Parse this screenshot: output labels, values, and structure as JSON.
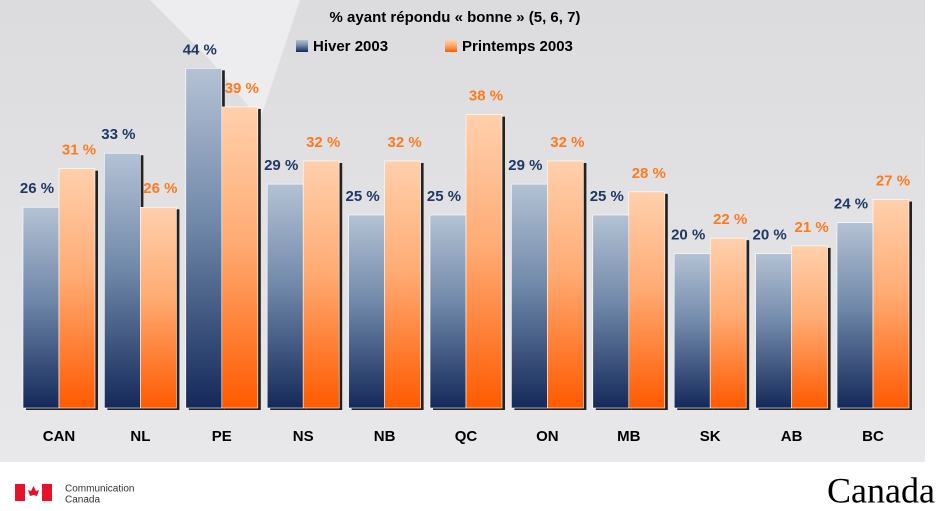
{
  "chart_data": {
    "type": "bar",
    "title": "% ayant répondu « bonne » (5, 6, 7)",
    "categories": [
      "CAN",
      "NL",
      "PE",
      "NS",
      "NB",
      "QC",
      "ON",
      "MB",
      "SK",
      "AB",
      "BC"
    ],
    "series": [
      {
        "name": "Hiver 2003",
        "color": "#1f3864",
        "values": [
          26,
          33,
          44,
          29,
          25,
          25,
          29,
          25,
          20,
          20,
          24
        ],
        "value_labels": [
          "26 %",
          "33 %",
          "44 %",
          "29 %",
          "25 %",
          "25 %",
          "29 %",
          "25 %",
          "20 %",
          "20 %",
          "24 %"
        ]
      },
      {
        "name": "Printemps 2003",
        "color": "#ff7a1f",
        "values": [
          31,
          26,
          39,
          32,
          32,
          38,
          32,
          28,
          22,
          21,
          27
        ],
        "value_labels": [
          "31 %",
          "26 %",
          "39 %",
          "32 %",
          "32 %",
          "38 %",
          "32 %",
          "28 %",
          "22 %",
          "21 %",
          "27 %"
        ]
      }
    ]
  },
  "footer": {
    "department_line1": "Communication",
    "department_line2": "Canada",
    "wordmark": "Canada"
  }
}
